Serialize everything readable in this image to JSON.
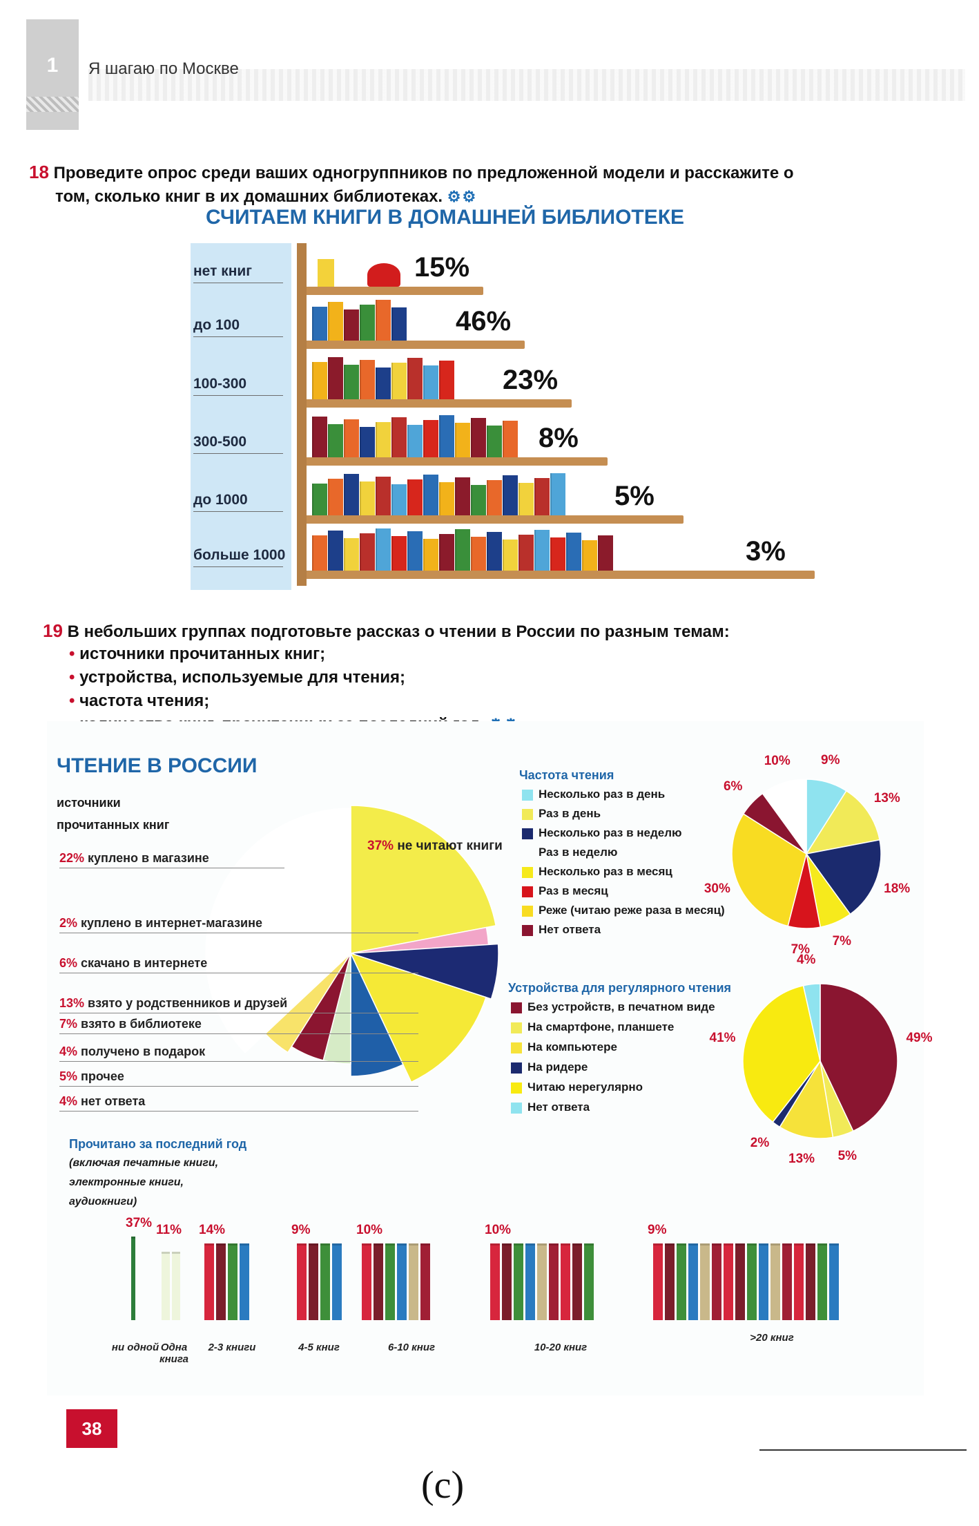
{
  "header": {
    "chapter_number": "1",
    "chapter_title": "Я шагаю по Москве"
  },
  "exercise18": {
    "number": "18",
    "text_line1": "Проведите опрос среди ваших одногруппников по предложенной модели и расскажите о",
    "text_line2": "том, сколько книг в их домашних библиотеках.",
    "icon": "gears-icon",
    "infographic_title": "СЧИТАЕМ КНИГИ В ДОМАШНЕЙ БИБЛИОТЕКЕ",
    "chart_data": {
      "type": "bar",
      "categories": [
        "нет книг",
        "до 100",
        "100-300",
        "300-500",
        "до 1000",
        "больше 1000"
      ],
      "values": [
        15,
        46,
        23,
        8,
        5,
        3
      ],
      "value_labels": [
        "15%",
        "46%",
        "23%",
        "8%",
        "5%",
        "3%"
      ]
    }
  },
  "exercise19": {
    "number": "19",
    "intro": "В небольших группах подготовьте рассказ о чтении в России по разным темам:",
    "bullets": [
      "источники прочитанных книг;",
      "устройства, используемые для чтения;",
      "частота чтения;",
      "количество книг, прочитанных за последний год."
    ],
    "icon": "gears-icon"
  },
  "reading": {
    "title": "ЧТЕНИЕ В РОССИИ",
    "sources": {
      "heading_line1": "источники",
      "heading_line2": "прочитанных книг",
      "chart_data": {
        "type": "pie",
        "slices": [
          {
            "pct": "22%",
            "label": "куплено в магазине",
            "value": 22,
            "color": "#f3ec4a"
          },
          {
            "pct": "2%",
            "label": "куплено в интернет-магазине",
            "value": 2,
            "color": "#f2a5c8"
          },
          {
            "pct": "6%",
            "label": "скачано в интернете",
            "value": 6,
            "color": "#1c2a73"
          },
          {
            "pct": "13%",
            "label": "взято у родственников и друзей",
            "value": 13,
            "color": "#f5e936"
          },
          {
            "pct": "7%",
            "label": "взято в библиотеке",
            "value": 7,
            "color": "#1f5fa8"
          },
          {
            "pct": "4%",
            "label": "получено в подарок",
            "value": 4,
            "color": "#d6ebc6"
          },
          {
            "pct": "5%",
            "label": "прочее",
            "value": 5,
            "color": "#8b1530"
          },
          {
            "pct": "4%",
            "label": "нет ответа",
            "value": 4,
            "color": "#f8e36a"
          },
          {
            "pct": "37%",
            "label": "не читают книги",
            "value": 37,
            "color": "#ffffff"
          }
        ]
      }
    },
    "frequency": {
      "title": "Частота чтения",
      "legend": [
        {
          "label": "Несколько раз в день",
          "color": "#8fe3ef"
        },
        {
          "label": "Раз в день",
          "color": "#f1ea58"
        },
        {
          "label": "Несколько раз в неделю",
          "color": "#1b2a6e"
        },
        {
          "label": "Раз в неделю",
          "color": "#ffffff"
        },
        {
          "label": "Несколько раз в месяц",
          "color": "#f6ea1c"
        },
        {
          "label": "Раз в месяц",
          "color": "#d7141c"
        },
        {
          "label": "Реже (читаю реже раза в месяц)",
          "color": "#f8dc22"
        },
        {
          "label": "Нет ответа",
          "color": "#8a1530"
        }
      ],
      "chart_data": {
        "type": "pie",
        "slices": [
          {
            "label": "9%",
            "value": 9,
            "color": "#8fe3ef"
          },
          {
            "label": "13%",
            "value": 13,
            "color": "#f1ea58"
          },
          {
            "label": "18%",
            "value": 18,
            "color": "#1b2a6e"
          },
          {
            "label": "7%",
            "value": 7,
            "color": "#f6ea1c"
          },
          {
            "label": "7%",
            "value": 7,
            "color": "#d7141c"
          },
          {
            "label": "30%",
            "value": 30,
            "color": "#f8dc22"
          },
          {
            "label": "6%",
            "value": 6,
            "color": "#8a1530"
          },
          {
            "label": "10%",
            "value": 10,
            "color": "#ffffff"
          }
        ]
      }
    },
    "devices": {
      "title": "Устройства для регулярного чтения",
      "legend": [
        {
          "label": "Без устройств, в печатном виде",
          "color": "#8a1530"
        },
        {
          "label": "На смартфоне, планшете",
          "color": "#f1ea58"
        },
        {
          "label": "На компьютере",
          "color": "#f6e23a"
        },
        {
          "label": "На ридере",
          "color": "#1b2a6e"
        },
        {
          "label": "Читаю нерегулярно",
          "color": "#f8ea10"
        },
        {
          "label": "Нет ответа",
          "color": "#8fe3ef"
        }
      ],
      "chart_data": {
        "type": "pie",
        "slices": [
          {
            "label": "49%",
            "value": 49,
            "color": "#8a1530"
          },
          {
            "label": "5%",
            "value": 5,
            "color": "#f1ea58"
          },
          {
            "label": "13%",
            "value": 13,
            "color": "#f6e23a"
          },
          {
            "label": "2%",
            "value": 2,
            "color": "#1b2a6e"
          },
          {
            "label": "41%",
            "value": 41,
            "color": "#f8ea10"
          },
          {
            "label": "4%",
            "value": 4,
            "color": "#8fe3ef"
          }
        ]
      }
    },
    "read_last_year": {
      "title": "Прочитано за последний год",
      "subtitle_line1": "(включая печатные книги,",
      "subtitle_line2": "электронные книги,",
      "subtitle_line3": "аудиокниги)",
      "chart_data": {
        "type": "bar",
        "categories": [
          "ни одной",
          "Одна книга",
          "2-3 книги",
          "4-5 книг",
          "6-10 книг",
          "10-20 книг",
          ">20 книг"
        ],
        "values": [
          37,
          11,
          14,
          9,
          10,
          10,
          9
        ],
        "value_labels": [
          "37%",
          "11%",
          "14%",
          "9%",
          "10%",
          "10%",
          "9%"
        ]
      }
    }
  },
  "page_number": "38",
  "caption": "(c)"
}
